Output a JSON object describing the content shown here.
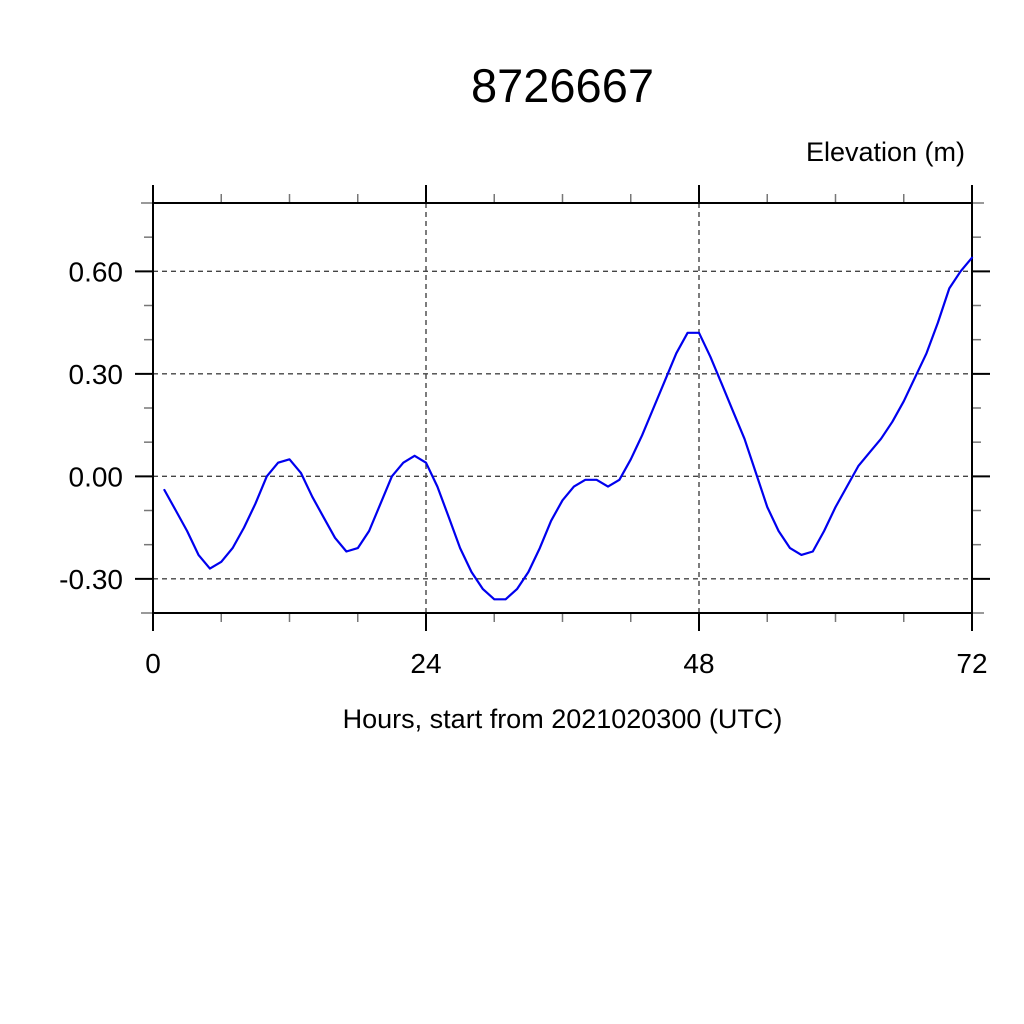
{
  "page": {
    "background": "#ffffff"
  },
  "chart": {
    "title": "8726667",
    "right_axis_label": "Elevation (m)",
    "xlabel": "Hours, start from 2021020300 (UTC)"
  },
  "colors": {
    "line": "#0000ee",
    "frame": "#000000",
    "grid": "#444444",
    "major_tick": "#000000",
    "minor_tick": "#777777",
    "text": "#000000"
  },
  "chart_data": {
    "type": "line",
    "title": "8726667",
    "xlabel": "Hours, start from 2021020300 (UTC)",
    "ylabel": "Elevation (m)",
    "xlim": [
      0,
      72
    ],
    "ylim": [
      -0.4,
      0.8
    ],
    "x_major_ticks": [
      0,
      24,
      48,
      72
    ],
    "x_tick_labels": [
      "0",
      "24",
      "48",
      "72"
    ],
    "x_minor_step": 6,
    "y_major_ticks": [
      -0.3,
      0.0,
      0.3,
      0.6
    ],
    "y_tick_labels": [
      "-0.30",
      "0.00",
      "0.30",
      "0.60"
    ],
    "y_minor_step": 0.1,
    "grid": true,
    "grid_style": "dashed",
    "legend": "none",
    "series": [
      {
        "name": "elevation",
        "color": "#0000ee",
        "x": [
          1,
          2,
          3,
          4,
          5,
          6,
          7,
          8,
          9,
          10,
          11,
          12,
          13,
          14,
          15,
          16,
          17,
          18,
          19,
          20,
          21,
          22,
          23,
          24,
          25,
          26,
          27,
          28,
          29,
          30,
          31,
          32,
          33,
          34,
          35,
          36,
          37,
          38,
          39,
          40,
          41,
          42,
          43,
          44,
          45,
          46,
          47,
          48,
          49,
          50,
          51,
          52,
          53,
          54,
          55,
          56,
          57,
          58,
          59,
          60,
          61,
          62,
          63,
          64,
          65,
          66,
          67,
          68,
          69,
          70,
          71,
          72
        ],
        "values": [
          -0.04,
          -0.1,
          -0.16,
          -0.23,
          -0.27,
          -0.25,
          -0.21,
          -0.15,
          -0.08,
          0.0,
          0.04,
          0.05,
          0.01,
          -0.06,
          -0.12,
          -0.18,
          -0.22,
          -0.21,
          -0.16,
          -0.08,
          0.0,
          0.04,
          0.06,
          0.04,
          -0.03,
          -0.12,
          -0.21,
          -0.28,
          -0.33,
          -0.36,
          -0.36,
          -0.33,
          -0.28,
          -0.21,
          -0.13,
          -0.07,
          -0.03,
          -0.01,
          -0.01,
          -0.03,
          -0.01,
          0.05,
          0.12,
          0.2,
          0.28,
          0.36,
          0.42,
          0.42,
          0.35,
          0.27,
          0.19,
          0.11,
          0.01,
          -0.09,
          -0.16,
          -0.21,
          -0.23,
          -0.22,
          -0.16,
          -0.09,
          -0.03,
          0.03,
          0.07,
          0.11,
          0.16,
          0.22,
          0.29,
          0.36,
          0.45,
          0.55,
          0.6,
          0.64
        ]
      }
    ]
  }
}
